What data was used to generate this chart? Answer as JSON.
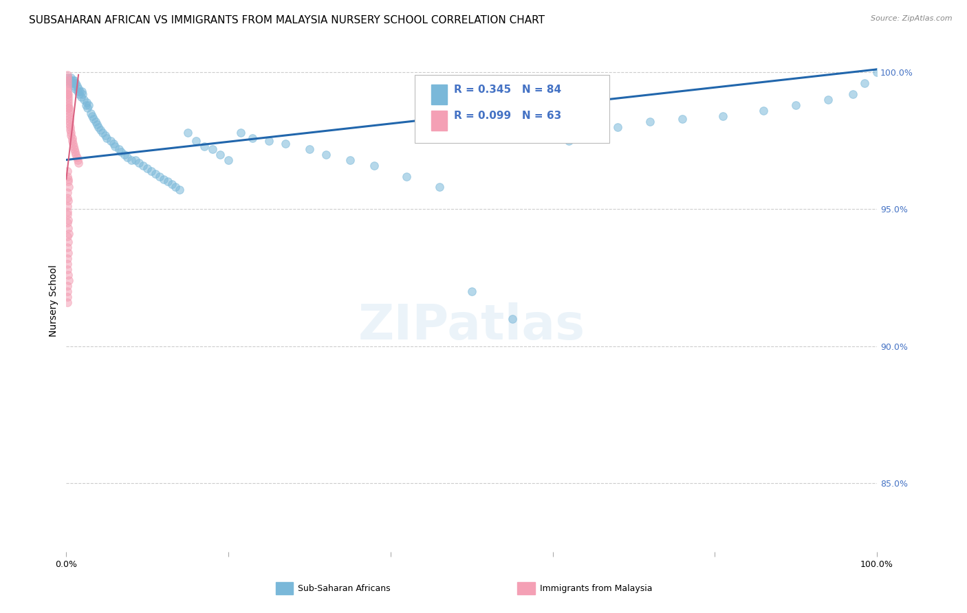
{
  "title": "SUBSAHARAN AFRICAN VS IMMIGRANTS FROM MALAYSIA NURSERY SCHOOL CORRELATION CHART",
  "source": "Source: ZipAtlas.com",
  "ylabel": "Nursery School",
  "legend_blue_r": "R = 0.345",
  "legend_blue_n": "N = 84",
  "legend_pink_r": "R = 0.099",
  "legend_pink_n": "N = 63",
  "legend_blue_label": "Sub-Saharan Africans",
  "legend_pink_label": "Immigrants from Malaysia",
  "blue_color": "#7ab8d9",
  "pink_color": "#f4a0b5",
  "blue_line_color": "#2166ac",
  "pink_line_color": "#d96080",
  "ytick_labels": [
    "100.0%",
    "95.0%",
    "90.0%",
    "85.0%"
  ],
  "ytick_values": [
    1.0,
    0.95,
    0.9,
    0.85
  ],
  "ytick_color": "#4472c4",
  "grid_color": "#cccccc",
  "background_color": "#ffffff",
  "blue_scatter_x": [
    0.002,
    0.003,
    0.004,
    0.005,
    0.006,
    0.007,
    0.008,
    0.009,
    0.01,
    0.01,
    0.011,
    0.012,
    0.013,
    0.014,
    0.015,
    0.016,
    0.017,
    0.018,
    0.019,
    0.02,
    0.022,
    0.024,
    0.025,
    0.026,
    0.028,
    0.03,
    0.032,
    0.034,
    0.036,
    0.038,
    0.04,
    0.042,
    0.045,
    0.048,
    0.05,
    0.055,
    0.058,
    0.06,
    0.065,
    0.068,
    0.072,
    0.075,
    0.08,
    0.085,
    0.09,
    0.095,
    0.1,
    0.105,
    0.11,
    0.115,
    0.12,
    0.125,
    0.13,
    0.135,
    0.14,
    0.15,
    0.16,
    0.17,
    0.18,
    0.19,
    0.2,
    0.215,
    0.23,
    0.25,
    0.27,
    0.3,
    0.32,
    0.35,
    0.38,
    0.42,
    0.46,
    0.5,
    0.55,
    0.62,
    0.68,
    0.72,
    0.76,
    0.81,
    0.86,
    0.9,
    0.94,
    0.97,
    0.985,
    1.0
  ],
  "blue_scatter_y": [
    0.998,
    0.997,
    0.996,
    0.997,
    0.998,
    0.996,
    0.997,
    0.995,
    0.996,
    0.997,
    0.994,
    0.996,
    0.995,
    0.993,
    0.994,
    0.992,
    0.993,
    0.991,
    0.993,
    0.992,
    0.99,
    0.988,
    0.989,
    0.987,
    0.988,
    0.985,
    0.984,
    0.983,
    0.982,
    0.981,
    0.98,
    0.979,
    0.978,
    0.977,
    0.976,
    0.975,
    0.974,
    0.973,
    0.972,
    0.971,
    0.97,
    0.969,
    0.968,
    0.968,
    0.967,
    0.966,
    0.965,
    0.964,
    0.963,
    0.962,
    0.961,
    0.96,
    0.959,
    0.958,
    0.957,
    0.978,
    0.975,
    0.973,
    0.972,
    0.97,
    0.968,
    0.978,
    0.976,
    0.975,
    0.974,
    0.972,
    0.97,
    0.968,
    0.966,
    0.962,
    0.958,
    0.92,
    0.91,
    0.975,
    0.98,
    0.982,
    0.983,
    0.984,
    0.986,
    0.988,
    0.99,
    0.992,
    0.996,
    1.0
  ],
  "pink_scatter_x": [
    0.001,
    0.001,
    0.001,
    0.001,
    0.001,
    0.001,
    0.001,
    0.001,
    0.002,
    0.002,
    0.002,
    0.002,
    0.002,
    0.002,
    0.003,
    0.003,
    0.003,
    0.003,
    0.004,
    0.004,
    0.004,
    0.005,
    0.005,
    0.006,
    0.006,
    0.007,
    0.007,
    0.008,
    0.009,
    0.01,
    0.011,
    0.012,
    0.013,
    0.014,
    0.015,
    0.001,
    0.001,
    0.002,
    0.002,
    0.003,
    0.001,
    0.001,
    0.002,
    0.001,
    0.001,
    0.001,
    0.002,
    0.001,
    0.002,
    0.003,
    0.001,
    0.002,
    0.001,
    0.002,
    0.001,
    0.001,
    0.001,
    0.002,
    0.003,
    0.001,
    0.001,
    0.001,
    0.001
  ],
  "pink_scatter_y": [
    0.999,
    0.998,
    0.997,
    0.996,
    0.995,
    0.994,
    0.993,
    0.992,
    0.992,
    0.991,
    0.99,
    0.989,
    0.988,
    0.987,
    0.987,
    0.986,
    0.985,
    0.984,
    0.983,
    0.982,
    0.981,
    0.98,
    0.979,
    0.978,
    0.977,
    0.976,
    0.975,
    0.974,
    0.973,
    0.972,
    0.971,
    0.97,
    0.969,
    0.968,
    0.967,
    0.964,
    0.962,
    0.961,
    0.96,
    0.958,
    0.956,
    0.954,
    0.953,
    0.951,
    0.949,
    0.948,
    0.946,
    0.945,
    0.943,
    0.941,
    0.94,
    0.938,
    0.936,
    0.934,
    0.932,
    0.93,
    0.928,
    0.926,
    0.924,
    0.922,
    0.92,
    0.918,
    0.916
  ],
  "blue_trendline": [
    [
      0.0,
      0.968
    ],
    [
      1.0,
      1.001
    ]
  ],
  "pink_trendline": [
    [
      0.0,
      0.961
    ],
    [
      0.015,
      0.999
    ]
  ],
  "xlim": [
    0.0,
    1.0
  ],
  "ylim": [
    0.825,
    1.008
  ],
  "title_fontsize": 11,
  "axis_fontsize": 10,
  "tick_fontsize": 9,
  "scatter_size": 70,
  "scatter_alpha": 0.55,
  "scatter_lw": 0.8
}
